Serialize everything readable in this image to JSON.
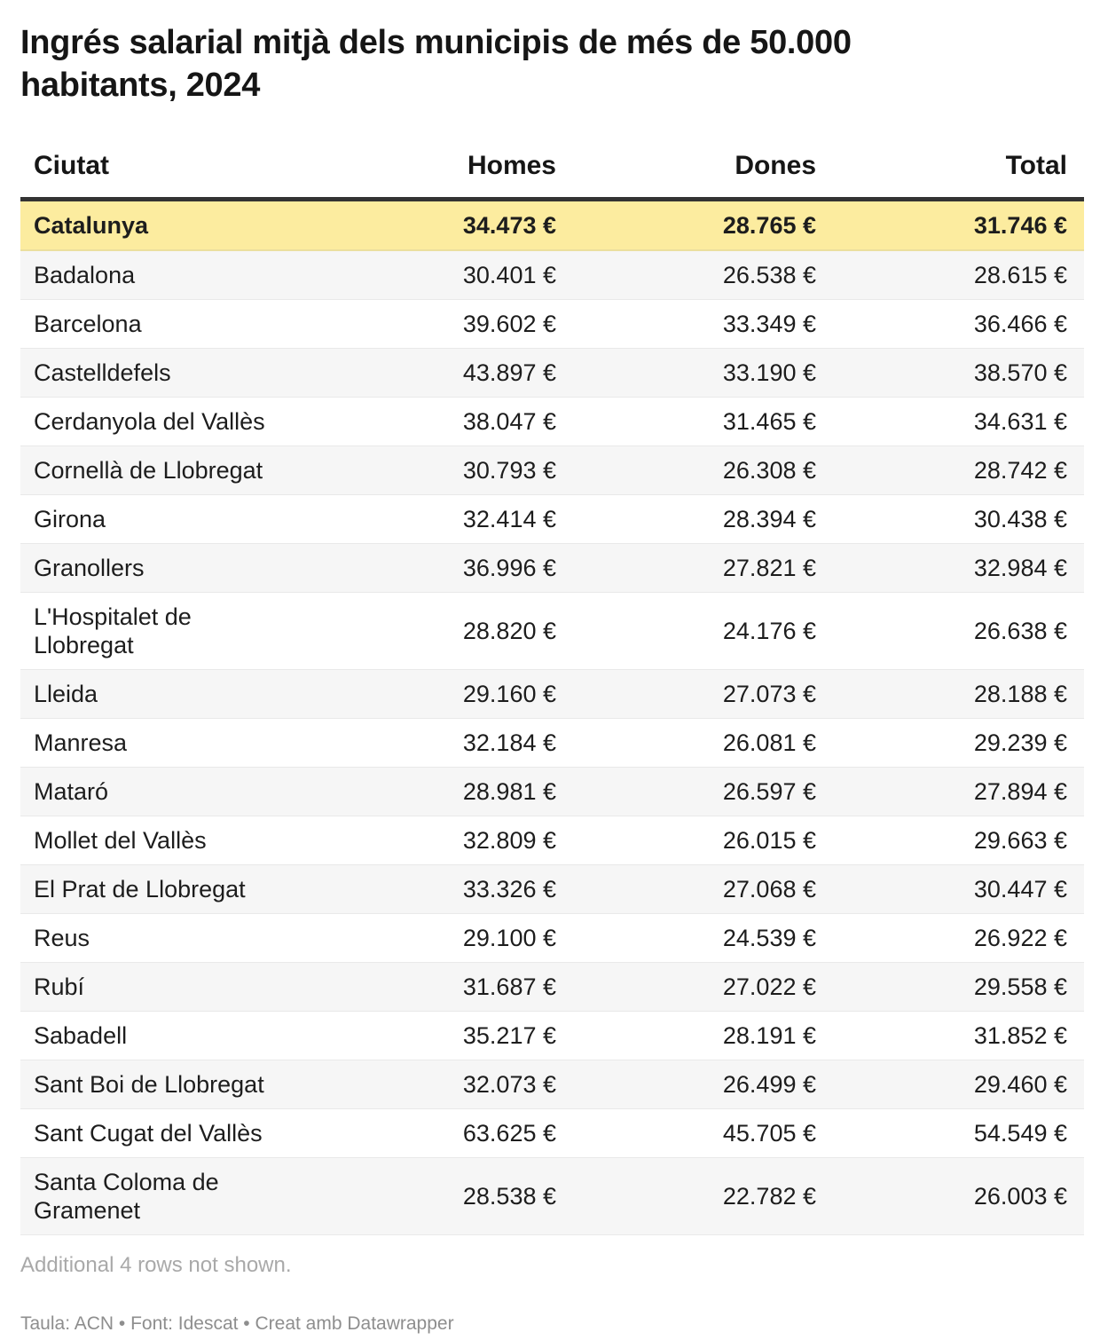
{
  "title": "Ingrés salarial mitjà dels municipis de més de 50.000 habitants, 2024",
  "note": "Additional 4 rows not shown.",
  "footer": "Taula: ACN • Font: Idescat • Creat amb Datawrapper",
  "colors": {
    "highlight_row": "#fcec9f",
    "stripe_row": "#f6f6f6",
    "header_border": "#333333",
    "note_text": "#a9a9a9",
    "footer_text": "#8e8e8e"
  },
  "table": {
    "columns": [
      "Ciutat",
      "Homes",
      "Dones",
      "Total"
    ],
    "rows": [
      {
        "city": "Catalunya",
        "homes": "34.473 €",
        "dones": "28.765 €",
        "total": "31.746 €"
      },
      {
        "city": "Badalona",
        "homes": "30.401 €",
        "dones": "26.538 €",
        "total": "28.615 €"
      },
      {
        "city": "Barcelona",
        "homes": "39.602 €",
        "dones": "33.349 €",
        "total": "36.466 €"
      },
      {
        "city": "Castelldefels",
        "homes": "43.897 €",
        "dones": "33.190 €",
        "total": "38.570 €"
      },
      {
        "city": "Cerdanyola del Vallès",
        "homes": "38.047 €",
        "dones": "31.465 €",
        "total": "34.631 €"
      },
      {
        "city": "Cornellà de Llobregat",
        "homes": "30.793 €",
        "dones": "26.308 €",
        "total": "28.742 €"
      },
      {
        "city": "Girona",
        "homes": "32.414 €",
        "dones": "28.394 €",
        "total": "30.438 €"
      },
      {
        "city": "Granollers",
        "homes": "36.996 €",
        "dones": "27.821 €",
        "total": "32.984 €"
      },
      {
        "city": "L'Hospitalet de Llobregat",
        "homes": "28.820 €",
        "dones": "24.176 €",
        "total": "26.638 €"
      },
      {
        "city": "Lleida",
        "homes": "29.160 €",
        "dones": "27.073 €",
        "total": "28.188 €"
      },
      {
        "city": "Manresa",
        "homes": "32.184 €",
        "dones": "26.081 €",
        "total": "29.239 €"
      },
      {
        "city": "Mataró",
        "homes": "28.981 €",
        "dones": "26.597 €",
        "total": "27.894 €"
      },
      {
        "city": "Mollet del Vallès",
        "homes": "32.809 €",
        "dones": "26.015 €",
        "total": "29.663 €"
      },
      {
        "city": "El Prat de Llobregat",
        "homes": "33.326 €",
        "dones": "27.068 €",
        "total": "30.447 €"
      },
      {
        "city": "Reus",
        "homes": "29.100 €",
        "dones": "24.539 €",
        "total": "26.922 €"
      },
      {
        "city": "Rubí",
        "homes": "31.687 €",
        "dones": "27.022 €",
        "total": "29.558 €"
      },
      {
        "city": "Sabadell",
        "homes": "35.217 €",
        "dones": "28.191 €",
        "total": "31.852 €"
      },
      {
        "city": "Sant Boi de Llobregat",
        "homes": "32.073 €",
        "dones": "26.499 €",
        "total": "29.460 €"
      },
      {
        "city": "Sant Cugat del Vallès",
        "homes": "63.625 €",
        "dones": "45.705 €",
        "total": "54.549 €"
      },
      {
        "city": "Santa Coloma de Gramenet",
        "homes": "28.538 €",
        "dones": "22.782 €",
        "total": "26.003 €"
      }
    ]
  },
  "chart_data": {
    "type": "table",
    "title": "Ingrés salarial mitjà dels municipis de més de 50.000 habitants, 2024",
    "columns": [
      "Ciutat",
      "Homes",
      "Dones",
      "Total"
    ],
    "unit": "€",
    "highlighted_row": "Catalunya",
    "rows": [
      [
        "Catalunya",
        34473,
        28765,
        31746
      ],
      [
        "Badalona",
        30401,
        26538,
        28615
      ],
      [
        "Barcelona",
        39602,
        33349,
        36466
      ],
      [
        "Castelldefels",
        43897,
        33190,
        38570
      ],
      [
        "Cerdanyola del Vallès",
        38047,
        31465,
        34631
      ],
      [
        "Cornellà de Llobregat",
        30793,
        26308,
        28742
      ],
      [
        "Girona",
        32414,
        28394,
        30438
      ],
      [
        "Granollers",
        36996,
        27821,
        32984
      ],
      [
        "L'Hospitalet de Llobregat",
        28820,
        24176,
        26638
      ],
      [
        "Lleida",
        29160,
        27073,
        28188
      ],
      [
        "Manresa",
        32184,
        26081,
        29239
      ],
      [
        "Mataró",
        28981,
        26597,
        27894
      ],
      [
        "Mollet del Vallès",
        32809,
        26015,
        29663
      ],
      [
        "El Prat de Llobregat",
        33326,
        27068,
        30447
      ],
      [
        "Reus",
        29100,
        24539,
        26922
      ],
      [
        "Rubí",
        31687,
        27022,
        29558
      ],
      [
        "Sabadell",
        35217,
        28191,
        31852
      ],
      [
        "Sant Boi de Llobregat",
        32073,
        26499,
        29460
      ],
      [
        "Sant Cugat del Vallès",
        63625,
        45705,
        54549
      ],
      [
        "Santa Coloma de Gramenet",
        28538,
        22782,
        26003
      ]
    ]
  }
}
